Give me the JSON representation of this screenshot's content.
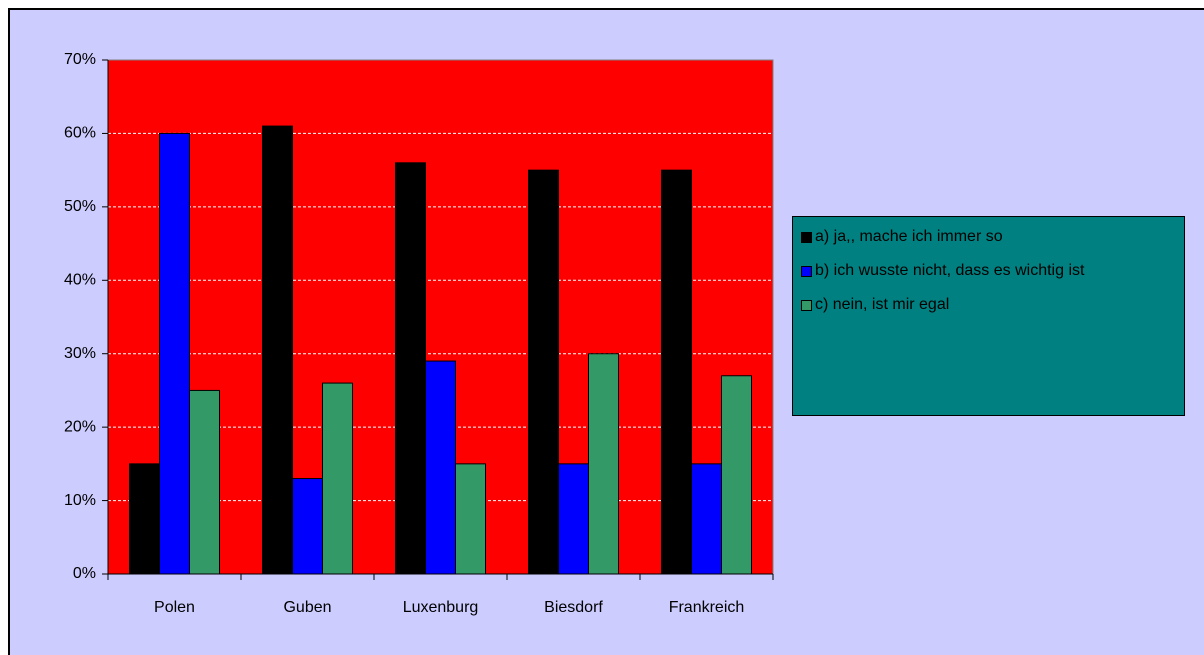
{
  "chart_data": {
    "type": "bar",
    "categories": [
      "Polen",
      "Guben",
      "Luxenburg",
      "Biesdorf",
      "Frankreich"
    ],
    "series": [
      {
        "name": "a) ja,, mache ich immer so",
        "color": "#000000",
        "values": [
          15,
          61,
          56,
          55,
          55
        ]
      },
      {
        "name": "b) ich wusste nicht, dass es wichtig ist",
        "color": "#0000ff",
        "values": [
          60,
          13,
          29,
          15,
          15
        ]
      },
      {
        "name": "c) nein, ist mir egal",
        "color": "#339966",
        "values": [
          25,
          26,
          15,
          30,
          27
        ]
      }
    ],
    "ylim": [
      0,
      70
    ],
    "yticks": [
      {
        "value": 0,
        "label": "0%"
      },
      {
        "value": 10,
        "label": "10%"
      },
      {
        "value": 20,
        "label": "20%"
      },
      {
        "value": 30,
        "label": "30%"
      },
      {
        "value": 40,
        "label": "40%"
      },
      {
        "value": 50,
        "label": "50%"
      },
      {
        "value": 60,
        "label": "60%"
      },
      {
        "value": 70,
        "label": "70%"
      }
    ],
    "grid": true,
    "plot_color": "#ff0000",
    "legend": "right"
  }
}
